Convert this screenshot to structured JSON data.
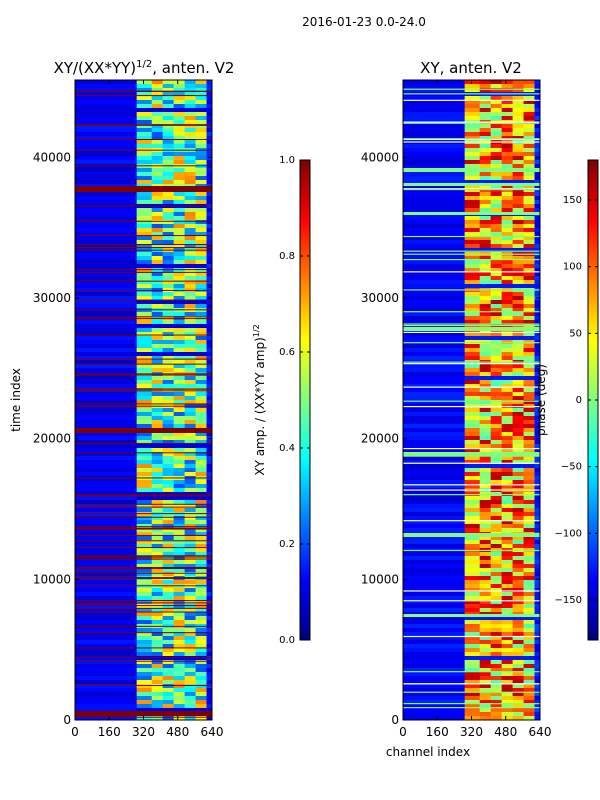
{
  "figure": {
    "suptitle": "2016-01-23 0.0-24.0"
  },
  "colors": {
    "jet": [
      "#00007f",
      "#0000ff",
      "#007fff",
      "#00ffff",
      "#7fff7f",
      "#ffff00",
      "#ff7f00",
      "#ff0000",
      "#7f0000"
    ],
    "frame": "#000000"
  },
  "chart_data": [
    {
      "type": "heatmap",
      "title": "XY/(XX*YY)^{1/2}, anten. V2",
      "title_main": "XY/(XX*YY)",
      "title_sup": "1/2",
      "title_tail": ", anten. V2",
      "xlabel": "",
      "ylabel": "time index",
      "x_ticks": [
        "0",
        "160",
        "320",
        "480",
        "640"
      ],
      "y_ticks": [
        "0",
        "10000",
        "20000",
        "30000",
        "40000"
      ],
      "xlim": [
        0,
        640
      ],
      "ylim": [
        0,
        45500
      ],
      "colorbar": {
        "label": "XY amp. / (XX*YY amp)^{1/2}",
        "label_main": "XY amp. / (XX*YY amp)",
        "label_sup": "1/2",
        "ticks": [
          "0.0",
          "0.2",
          "0.4",
          "0.6",
          "0.8",
          "1.0"
        ],
        "range": [
          0,
          1
        ]
      }
    },
    {
      "type": "heatmap",
      "title": "XY, anten. V2",
      "xlabel": "channel index",
      "ylabel": "",
      "x_ticks": [
        "0",
        "160",
        "320",
        "480",
        "640"
      ],
      "y_ticks": [
        "0",
        "10000",
        "20000",
        "30000",
        "40000"
      ],
      "xlim": [
        0,
        640
      ],
      "ylim": [
        0,
        45500
      ],
      "colorbar": {
        "label": "phase (deg)",
        "ticks": [
          "−150",
          "−100",
          "−50",
          "0",
          "50",
          "100",
          "150"
        ],
        "range": [
          -180,
          180
        ]
      }
    }
  ]
}
